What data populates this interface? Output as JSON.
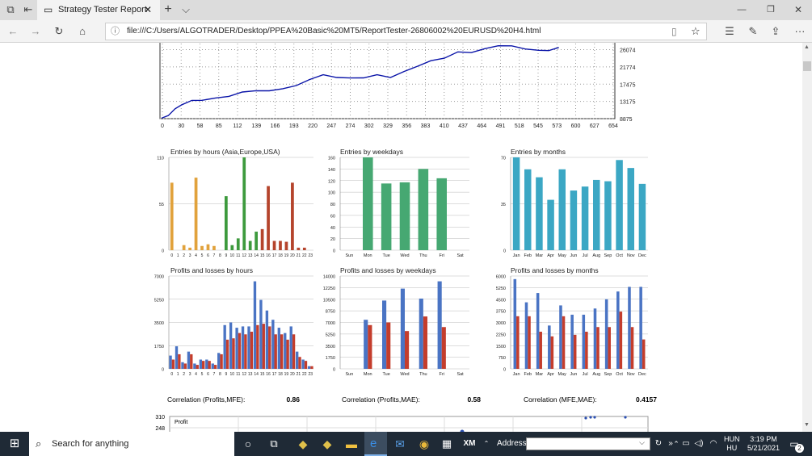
{
  "window": {
    "tab_title": "Strategy Tester Report",
    "tab_close": "✕",
    "new_tab": "+",
    "tab_menu": "⌵",
    "min": "—",
    "max": "❐",
    "close": "✕"
  },
  "address": {
    "url": "file:///C:/Users/ALGOTRADER/Desktop/PPEA%20Basic%20MT5/ReportTester-26806002%20EURUSD%20H4.html"
  },
  "balance": {
    "y_labels": [
      "26074",
      "21774",
      "17475",
      "13175",
      "8875"
    ],
    "x_labels": [
      "0",
      "30",
      "58",
      "85",
      "112",
      "139",
      "166",
      "193",
      "220",
      "247",
      "274",
      "302",
      "329",
      "356",
      "383",
      "410",
      "437",
      "464",
      "491",
      "518",
      "545",
      "573",
      "600",
      "627",
      "654"
    ],
    "curve": [
      [
        0,
        8875
      ],
      [
        10,
        9800
      ],
      [
        20,
        11200
      ],
      [
        30,
        12500
      ],
      [
        45,
        13300
      ],
      [
        60,
        13600
      ],
      [
        80,
        13900
      ],
      [
        100,
        14600
      ],
      [
        120,
        15400
      ],
      [
        140,
        16000
      ],
      [
        160,
        15700
      ],
      [
        180,
        16500
      ],
      [
        200,
        17000
      ],
      [
        220,
        18800
      ],
      [
        240,
        19700
      ],
      [
        260,
        19300
      ],
      [
        280,
        18900
      ],
      [
        300,
        19200
      ],
      [
        320,
        19700
      ],
      [
        340,
        19300
      ],
      [
        360,
        20500
      ],
      [
        380,
        22100
      ],
      [
        400,
        23200
      ],
      [
        420,
        24100
      ],
      [
        440,
        25400
      ],
      [
        460,
        25500
      ],
      [
        480,
        26200
      ],
      [
        500,
        27200
      ],
      [
        520,
        26900
      ],
      [
        540,
        26400
      ],
      [
        560,
        25800
      ],
      [
        575,
        26000
      ],
      [
        590,
        26500
      ]
    ]
  },
  "entries_hours": {
    "title": "Entries by hours (Asia,Europe,USA)",
    "y_labels": [
      "110",
      "55",
      "0"
    ],
    "y_max": 110,
    "cats": [
      "0",
      "1",
      "2",
      "3",
      "4",
      "5",
      "6",
      "7",
      "8",
      "9",
      "10",
      "11",
      "12",
      "13",
      "14",
      "15",
      "16",
      "17",
      "18",
      "19",
      "20",
      "21",
      "22",
      "23"
    ],
    "values": [
      80,
      0,
      6,
      3,
      86,
      5,
      7,
      5,
      0,
      64,
      6,
      14,
      110,
      11,
      22,
      25,
      76,
      11,
      11,
      10,
      80,
      3,
      3,
      0
    ],
    "colors": [
      "#e1a23c",
      "#e1a23c",
      "#e1a23c",
      "#e1a23c",
      "#e1a23c",
      "#e1a23c",
      "#e1a23c",
      "#e1a23c",
      "#3d9a3d",
      "#3d9a3d",
      "#3d9a3d",
      "#3d9a3d",
      "#3d9a3d",
      "#3d9a3d",
      "#3d9a3d",
      "#b5442c",
      "#b5442c",
      "#b5442c",
      "#b5442c",
      "#b5442c",
      "#b5442c",
      "#b5442c",
      "#b5442c",
      "#b5442c"
    ]
  },
  "entries_weekdays": {
    "title": "Entries by weekdays",
    "y_labels": [
      "160",
      "140",
      "120",
      "100",
      "80",
      "60",
      "40",
      "20",
      "0"
    ],
    "y_max": 160,
    "cats": [
      "Sun",
      "Mon",
      "Tue",
      "Wed",
      "Thu",
      "Fri",
      "Sat"
    ],
    "values": [
      0,
      160,
      115,
      117,
      140,
      124,
      0
    ],
    "color": "#46a872"
  },
  "entries_months": {
    "title": "Entries by months",
    "y_labels": [
      "70",
      "35",
      "0"
    ],
    "y_max": 70,
    "cats": [
      "Jan",
      "Feb",
      "Mar",
      "Apr",
      "May",
      "Jun",
      "Jul",
      "Aug",
      "Sep",
      "Oct",
      "Nov",
      "Dec"
    ],
    "values": [
      70,
      61,
      55,
      38,
      61,
      45,
      48,
      53,
      52,
      68,
      62,
      50
    ],
    "color": "#3ba7c4"
  },
  "pl_hours": {
    "title": "Profits and losses by hours",
    "y_labels": [
      "7000",
      "5250",
      "3500",
      "1750",
      "0"
    ],
    "y_max": 7000,
    "cats": [
      "0",
      "1",
      "2",
      "3",
      "4",
      "5",
      "6",
      "7",
      "8",
      "9",
      "10",
      "11",
      "12",
      "13",
      "14",
      "15",
      "16",
      "17",
      "18",
      "19",
      "20",
      "21",
      "22",
      "23"
    ],
    "profit": [
      1000,
      1700,
      500,
      1300,
      400,
      700,
      700,
      400,
      1200,
      3300,
      3500,
      3100,
      3200,
      3200,
      6600,
      5200,
      4400,
      3700,
      3100,
      2700,
      3200,
      1300,
      700,
      200
    ],
    "loss": [
      700,
      1100,
      400,
      1100,
      300,
      600,
      600,
      300,
      1100,
      2200,
      2300,
      2700,
      2600,
      2800,
      3300,
      3400,
      3200,
      2600,
      2600,
      2200,
      2600,
      900,
      600,
      200
    ]
  },
  "pl_weekdays": {
    "title": "Profits and losses by weekdays",
    "y_labels": [
      "14000",
      "12250",
      "10500",
      "8750",
      "7000",
      "5250",
      "3500",
      "1750",
      "0"
    ],
    "y_max": 14000,
    "cats": [
      "Sun",
      "Mon",
      "Tue",
      "Wed",
      "Thu",
      "Fri",
      "Sat"
    ],
    "profit": [
      0,
      7400,
      10300,
      12100,
      10600,
      13200,
      0
    ],
    "loss": [
      0,
      6600,
      7000,
      5700,
      7900,
      6300,
      0
    ]
  },
  "pl_months": {
    "title": "Profits and losses by months",
    "y_labels": [
      "6000",
      "5250",
      "4500",
      "3750",
      "3000",
      "2250",
      "1500",
      "750",
      "0"
    ],
    "y_max": 6000,
    "cats": [
      "Jan",
      "Feb",
      "Mar",
      "Apr",
      "May",
      "Jun",
      "Jul",
      "Aug",
      "Sep",
      "Oct",
      "Nov",
      "Dec"
    ],
    "profit": [
      5800,
      4300,
      4900,
      2800,
      4100,
      3500,
      3500,
      3900,
      4500,
      5000,
      5300,
      5300
    ],
    "loss": [
      3400,
      3400,
      2400,
      2100,
      3400,
      2200,
      2400,
      2700,
      2700,
      3700,
      2700,
      1900
    ]
  },
  "correlations": [
    {
      "label": "Correlation (Profits,MFE):",
      "value": "0.86"
    },
    {
      "label": "Correlation (Profits,MAE):",
      "value": "0.58"
    },
    {
      "label": "Correlation (MFE,MAE):",
      "value": "0.4157"
    }
  ],
  "scatter": {
    "y_labels": [
      "310",
      "248"
    ],
    "legend": "Profit"
  },
  "taskbar": {
    "search": "Search for anything",
    "address_label": "Address",
    "lang_top": "HUN",
    "lang_bottom": "HU",
    "time": "3:19 PM",
    "date": "5/21/2021",
    "notif_count": "2"
  },
  "colors": {
    "profit": "#4a74c4",
    "loss": "#c43d2c",
    "curve": "#0a14a8"
  }
}
